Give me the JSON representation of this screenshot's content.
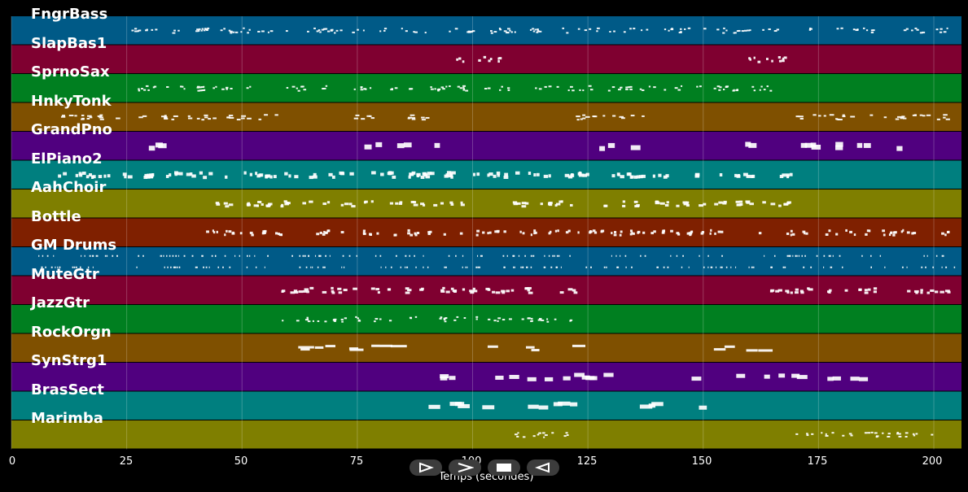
{
  "tracks": [
    {
      "name": "FngrBass",
      "color": "#005a87"
    },
    {
      "name": "SlapBas1",
      "color": "#7f0030"
    },
    {
      "name": "SprnoSax",
      "color": "#007f20"
    },
    {
      "name": "HnkyTonk",
      "color": "#7f5000"
    },
    {
      "name": "GrandPno",
      "color": "#50007f"
    },
    {
      "name": "ElPiano2",
      "color": "#007f7f"
    },
    {
      "name": "AahChoir",
      "color": "#7f7f00"
    },
    {
      "name": "Bottle",
      "color": "#7f2000"
    },
    {
      "name": "GM Drums",
      "color": "#005a87"
    },
    {
      "name": "MuteGtr",
      "color": "#7f0030"
    },
    {
      "name": "JazzGtr",
      "color": "#007f20"
    },
    {
      "name": "RockOrgn",
      "color": "#7f5000"
    },
    {
      "name": "SynStrg1",
      "color": "#50007f"
    },
    {
      "name": "BrasSect",
      "color": "#007f7f"
    },
    {
      "name": "Marimba",
      "color": "#7f7f00"
    }
  ],
  "axis": {
    "xlabel": "Temps (secondes)",
    "x_range": [
      0,
      206
    ],
    "ticks": [
      "0",
      "25",
      "50",
      "75",
      "100",
      "125",
      "150",
      "175",
      "200"
    ]
  },
  "controls": {
    "play_icon": "play-icon",
    "forward_icon": "forward-icon",
    "stop_icon": "stop-icon",
    "rewind_icon": "rewind-icon"
  }
}
